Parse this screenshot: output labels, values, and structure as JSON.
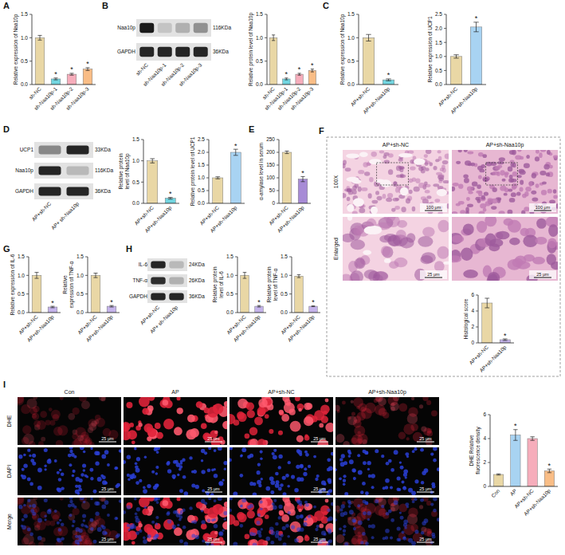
{
  "panels": [
    "A",
    "B",
    "C",
    "D",
    "E",
    "F",
    "G",
    "H",
    "I"
  ],
  "chart_data": [
    {
      "type": "bar",
      "ylabel": "Relative expression of Naa10p",
      "categories": [
        "sh-NC",
        "sh-Naa10p-1",
        "sh-Naa10p-2",
        "sh-Naa10p-3"
      ],
      "values": [
        1.0,
        0.12,
        0.22,
        0.33
      ],
      "errors": [
        0.05,
        0.02,
        0.02,
        0.03
      ],
      "colors": [
        "#e9d7a5",
        "#72d5e0",
        "#f6adbb",
        "#f9bd86"
      ],
      "annotations": [
        null,
        "*",
        "*",
        "*"
      ],
      "ylim": [
        0,
        1.5
      ],
      "yticks": [
        {
          "value": 0,
          "label": "0.0"
        },
        {
          "value": 0.5,
          "label": "0.5"
        },
        {
          "value": 1,
          "label": "1.0"
        },
        {
          "value": 1.5,
          "label": "1.5"
        }
      ]
    },
    {
      "type": "bar",
      "ylabel": "Relative protein level of Naa10p",
      "categories": [
        "sh-NC",
        "sh-Naa10p-1",
        "sh-Naa10p-2",
        "sh-Naa10p-3"
      ],
      "values": [
        1.0,
        0.12,
        0.22,
        0.3
      ],
      "errors": [
        0.06,
        0.02,
        0.02,
        0.03
      ],
      "colors": [
        "#e9d7a5",
        "#72d5e0",
        "#f6adbb",
        "#f9bd86"
      ],
      "annotations": [
        null,
        "*",
        "*",
        "*"
      ],
      "ylim": [
        0,
        1.5
      ],
      "yticks": [
        {
          "value": 0,
          "label": "0.0"
        },
        {
          "value": 0.5,
          "label": "0.5"
        },
        {
          "value": 1,
          "label": "1.0"
        },
        {
          "value": 1.5,
          "label": "1.5"
        }
      ]
    },
    {
      "type": "bar",
      "ylabel": "Relative expression of Naa10p",
      "categories": [
        "AP+sh-NC",
        "AP+sh-Naa10p"
      ],
      "values": [
        1.0,
        0.1
      ],
      "errors": [
        0.07,
        0.02
      ],
      "colors": [
        "#e9d7a5",
        "#72d5e0"
      ],
      "annotations": [
        null,
        "*"
      ],
      "ylim": [
        0,
        1.5
      ],
      "yticks": [
        {
          "value": 0,
          "label": "0.0"
        },
        {
          "value": 0.5,
          "label": "0.5"
        },
        {
          "value": 1,
          "label": "1.0"
        },
        {
          "value": 1.5,
          "label": "1.5"
        }
      ]
    },
    {
      "type": "bar",
      "ylabel": "Relative expression of UCP1",
      "categories": [
        "AP+sh-NC",
        "AP+sh-Naa10p"
      ],
      "values": [
        1.0,
        2.05
      ],
      "errors": [
        0.06,
        0.17
      ],
      "colors": [
        "#e9d7a5",
        "#a8d3f2"
      ],
      "annotations": [
        null,
        "*"
      ],
      "ylim": [
        0,
        2.5
      ],
      "yticks": [
        {
          "value": 0,
          "label": "0.0"
        },
        {
          "value": 0.5,
          "label": "0.5"
        },
        {
          "value": 1,
          "label": "1.0"
        },
        {
          "value": 1.5,
          "label": "1.5"
        },
        {
          "value": 2,
          "label": "2.0"
        },
        {
          "value": 2.5,
          "label": "2.5"
        }
      ]
    },
    {
      "type": "bar",
      "ylabel": "Relative protein level of Naa10p",
      "categories": [
        "AP+sh-NC",
        "AP+sh-Naa10p"
      ],
      "values": [
        1.0,
        0.12
      ],
      "errors": [
        0.05,
        0.02
      ],
      "colors": [
        "#e9d7a5",
        "#72d5e0"
      ],
      "annotations": [
        null,
        "*"
      ],
      "ylim": [
        0,
        1.5
      ],
      "yticks": [
        {
          "value": 0,
          "label": "0.0"
        },
        {
          "value": 0.5,
          "label": "0.5"
        },
        {
          "value": 1,
          "label": "1.0"
        },
        {
          "value": 1.5,
          "label": "1.5"
        }
      ]
    },
    {
      "type": "bar",
      "ylabel": "Relative protein level of UCP1",
      "categories": [
        "AP+sh-NC",
        "AP+sh-Naa10p"
      ],
      "values": [
        1.0,
        2.0
      ],
      "errors": [
        0.04,
        0.12
      ],
      "colors": [
        "#e9d7a5",
        "#a8d3f2"
      ],
      "annotations": [
        null,
        "*"
      ],
      "ylim": [
        0,
        2.5
      ],
      "yticks": [
        {
          "value": 0,
          "label": "0.0"
        },
        {
          "value": 0.5,
          "label": "0.5"
        },
        {
          "value": 1,
          "label": "1.0"
        },
        {
          "value": 1.5,
          "label": "1.5"
        },
        {
          "value": 2,
          "label": "2.0"
        },
        {
          "value": 2.5,
          "label": "2.5"
        }
      ]
    },
    {
      "type": "bar",
      "ylabel": "α-amylase level in serum",
      "categories": [
        "AP+sh-NC",
        "AP+sh-Naa10p"
      ],
      "values": [
        200,
        95
      ],
      "errors": [
        5,
        10
      ],
      "colors": [
        "#e9d7a5",
        "#a78bd6"
      ],
      "annotations": [
        null,
        "*"
      ],
      "ylim": [
        0,
        250
      ],
      "yticks": [
        0,
        50,
        100,
        150,
        200,
        250
      ]
    },
    {
      "type": "bar",
      "ylabel": "Relative expression of IL-6",
      "categories": [
        "AP+sh-NC",
        "AP+sh-Naa10p"
      ],
      "values": [
        1.0,
        0.15
      ],
      "errors": [
        0.08,
        0.02
      ],
      "colors": [
        "#e9d7a5",
        "#c4b3ea"
      ],
      "annotations": [
        null,
        "*"
      ],
      "ylim": [
        0,
        1.5
      ],
      "yticks": [
        {
          "value": 0,
          "label": "0.0"
        },
        {
          "value": 0.5,
          "label": "0.5"
        },
        {
          "value": 1,
          "label": "1.0"
        },
        {
          "value": 1.5,
          "label": "1.5"
        }
      ]
    },
    {
      "type": "bar",
      "ylabel": "Relative expression of TNF-α",
      "categories": [
        "AP+sh-NC",
        "AP+sh-Naa10p"
      ],
      "values": [
        1.0,
        0.17
      ],
      "errors": [
        0.06,
        0.02
      ],
      "colors": [
        "#e9d7a5",
        "#c4b3ea"
      ],
      "annotations": [
        null,
        "*"
      ],
      "ylim": [
        0,
        1.5
      ],
      "yticks": [
        {
          "value": 0,
          "label": "0.0"
        },
        {
          "value": 0.5,
          "label": "0.5"
        },
        {
          "value": 1,
          "label": "1.0"
        },
        {
          "value": 1.5,
          "label": "1.5"
        }
      ]
    },
    {
      "type": "bar",
      "ylabel": "Relative protein level of IL-6",
      "categories": [
        "AP+sh-NC",
        "AP+sh-Naa10p"
      ],
      "values": [
        1.0,
        0.17
      ],
      "errors": [
        0.08,
        0.02
      ],
      "colors": [
        "#e9d7a5",
        "#c4b3ea"
      ],
      "annotations": [
        null,
        "*"
      ],
      "ylim": [
        0,
        1.5
      ],
      "yticks": [
        {
          "value": 0,
          "label": "0.0"
        },
        {
          "value": 0.5,
          "label": "0.5"
        },
        {
          "value": 1,
          "label": "1.0"
        },
        {
          "value": 1.5,
          "label": "1.5"
        }
      ]
    },
    {
      "type": "bar",
      "ylabel": "Relative protein level of TNF-α",
      "categories": [
        "AP+sh-NC",
        "AP+sh-Naa10p"
      ],
      "values": [
        0.98,
        0.17
      ],
      "errors": [
        0.04,
        0.01
      ],
      "colors": [
        "#e9d7a5",
        "#c4b3ea"
      ],
      "annotations": [
        null,
        "*"
      ],
      "ylim": [
        0,
        1.5
      ],
      "yticks": [
        {
          "value": 0,
          "label": "0.0"
        },
        {
          "value": 0.5,
          "label": "0.5"
        },
        {
          "value": 1,
          "label": "1.0"
        },
        {
          "value": 1.5,
          "label": "1.5"
        }
      ]
    },
    {
      "type": "bar",
      "ylabel": "Histological score",
      "categories": [
        "AP+sh-NC",
        "AP+sh-Naa10p"
      ],
      "values": [
        5.0,
        0.4
      ],
      "errors": [
        0.6,
        0.1
      ],
      "colors": [
        "#e9d7a5",
        "#c4b3ea"
      ],
      "annotations": [
        null,
        "*"
      ],
      "ylim": [
        0,
        6
      ],
      "yticks": [
        0,
        2,
        4,
        6
      ]
    },
    {
      "type": "bar",
      "ylabel": "DHE Relative fluorescence density",
      "categories": [
        "Con",
        "AP",
        "AP+sh-NC",
        "AP+sh-Naa10p"
      ],
      "values": [
        1.0,
        4.3,
        4.0,
        1.3
      ],
      "errors": [
        0.05,
        0.45,
        0.15,
        0.15
      ],
      "colors": [
        "#e9d7a5",
        "#a8d3f2",
        "#f6adbb",
        "#f9bd86"
      ],
      "annotations": [
        null,
        "*",
        null,
        "*"
      ],
      "ylim": [
        0,
        6
      ],
      "yticks": [
        0,
        2,
        4,
        6
      ]
    }
  ],
  "blots": [
    {
      "lanes": [
        "sh-NC",
        "sh-Naa10p-1",
        "sh-Naa10p-2",
        "sh-Naa10p-3"
      ],
      "rows": [
        {
          "name": "Naa10p",
          "size": "116KDa",
          "intensity": [
            1.0,
            0.15,
            0.25,
            0.4
          ]
        },
        {
          "name": "GAPDH",
          "size": "36KDa",
          "intensity": [
            0.95,
            0.95,
            0.95,
            0.95
          ]
        }
      ]
    },
    {
      "lanes": [
        "AP+sh-NC",
        "AP+ sh-Naa10p"
      ],
      "rows": [
        {
          "name": "UCP1",
          "size": "33KDa",
          "intensity": [
            0.45,
            0.95
          ]
        },
        {
          "name": "Naa10p",
          "size": "116KDa",
          "intensity": [
            0.95,
            0.2
          ]
        },
        {
          "name": "GAPDH",
          "size": "36KDa",
          "intensity": [
            0.95,
            0.95
          ]
        }
      ]
    },
    {
      "lanes": [
        "AP+sh-NC",
        "AP+ sh-Naa10p"
      ],
      "rows": [
        {
          "name": "IL-6",
          "size": "24KDa",
          "intensity": [
            0.95,
            0.2
          ]
        },
        {
          "name": "TNF-α",
          "size": "26KDa",
          "intensity": [
            0.9,
            0.25
          ]
        },
        {
          "name": "GAPDH",
          "size": "36KDa",
          "intensity": [
            0.95,
            0.95
          ]
        }
      ]
    }
  ],
  "histology": {
    "columns": [
      "AP+sh-NC",
      "AP+sh-Naa10p"
    ],
    "rows": [
      "100X",
      "Enlarged"
    ],
    "scale_bars": [
      "100 μm",
      "25 μm"
    ]
  },
  "fluorescence": {
    "columns": [
      "Con",
      "AP",
      "AP+sh-NC",
      "AP+sh-Naa10p"
    ],
    "rows": [
      "DHE",
      "DAPI",
      "Merge"
    ],
    "scale_bar": "25 μm"
  }
}
